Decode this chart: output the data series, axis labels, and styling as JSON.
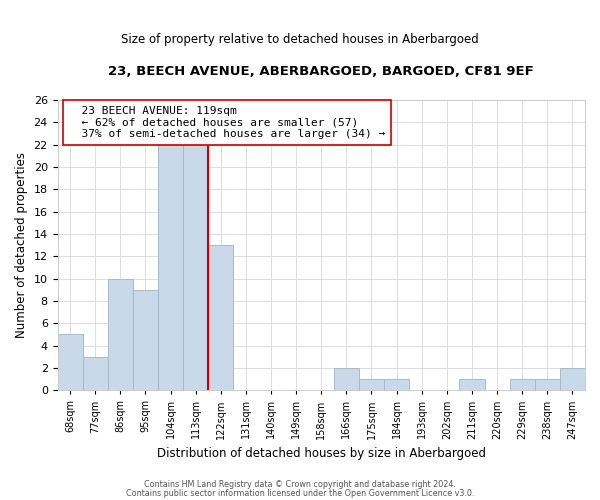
{
  "title": "23, BEECH AVENUE, ABERBARGOED, BARGOED, CF81 9EF",
  "subtitle": "Size of property relative to detached houses in Aberbargoed",
  "xlabel": "Distribution of detached houses by size in Aberbargoed",
  "ylabel": "Number of detached properties",
  "bins": [
    "68sqm",
    "77sqm",
    "86sqm",
    "95sqm",
    "104sqm",
    "113sqm",
    "122sqm",
    "131sqm",
    "140sqm",
    "149sqm",
    "158sqm",
    "166sqm",
    "175sqm",
    "184sqm",
    "193sqm",
    "202sqm",
    "211sqm",
    "220sqm",
    "229sqm",
    "238sqm",
    "247sqm"
  ],
  "counts": [
    5,
    3,
    10,
    9,
    22,
    22,
    13,
    0,
    0,
    0,
    0,
    2,
    1,
    1,
    0,
    0,
    1,
    0,
    1,
    1,
    2
  ],
  "bar_color": "#c9d9ea",
  "bar_edge_color": "#a0b4c8",
  "vline_x_index": 6,
  "vline_color": "#cc0000",
  "annotation_title": "23 BEECH AVENUE: 119sqm",
  "annotation_line1": "← 62% of detached houses are smaller (57)",
  "annotation_line2": "37% of semi-detached houses are larger (34) →",
  "annotation_box_color": "#ffffff",
  "annotation_box_edge_color": "#cc0000",
  "ylim": [
    0,
    26
  ],
  "yticks": [
    0,
    2,
    4,
    6,
    8,
    10,
    12,
    14,
    16,
    18,
    20,
    22,
    24,
    26
  ],
  "footer1": "Contains HM Land Registry data © Crown copyright and database right 2024.",
  "footer2": "Contains public sector information licensed under the Open Government Licence v3.0.",
  "background_color": "#ffffff",
  "grid_color": "#dddddd"
}
